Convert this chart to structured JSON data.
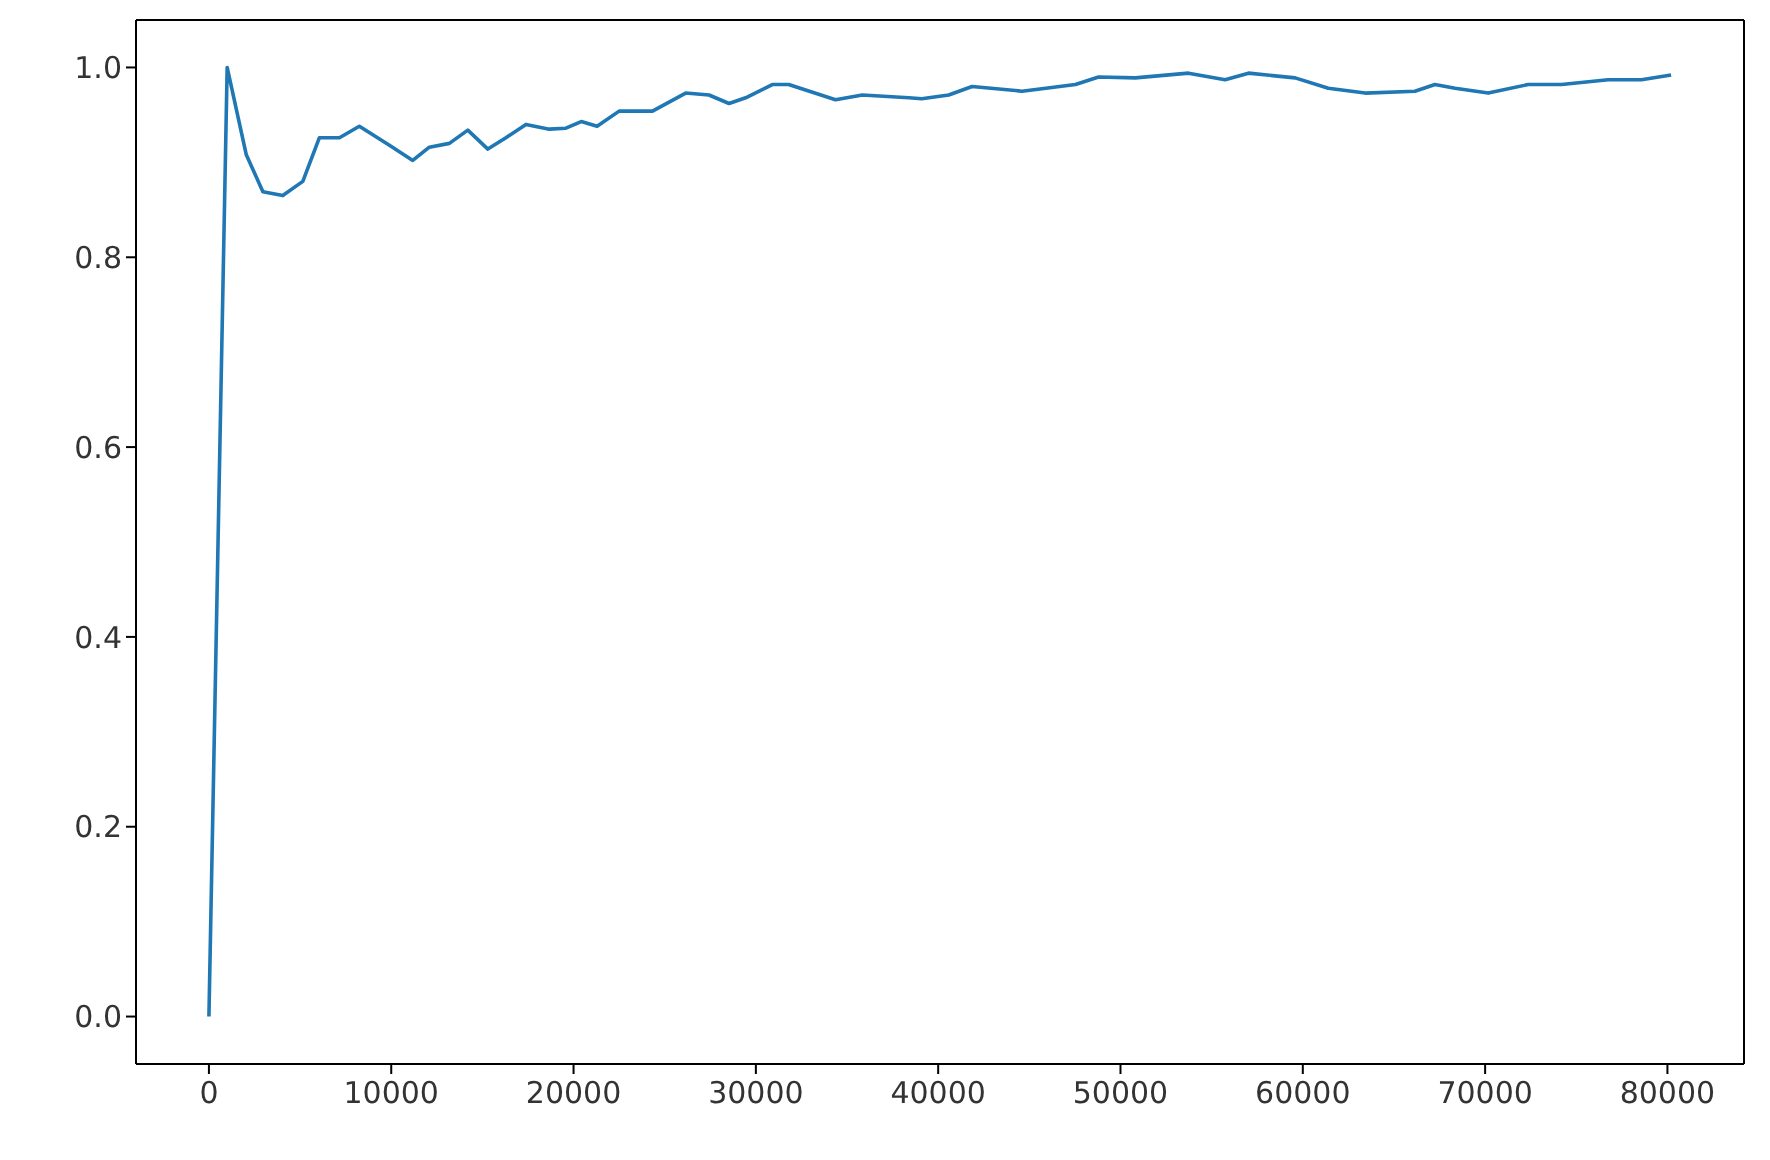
{
  "chart_data": {
    "type": "line",
    "x": [
      0,
      1000,
      2050,
      2960,
      4050,
      5150,
      6060,
      7160,
      8250,
      9900,
      11180,
      12090,
      13190,
      14200,
      15300,
      16290,
      17390,
      18670,
      19580,
      20420,
      21290,
      22500,
      24330,
      26150,
      27430,
      28530,
      29440,
      30900,
      31800,
      34370,
      35840,
      38390,
      39100,
      40580,
      41860,
      44600,
      47530,
      48800,
      50810,
      53730,
      55740,
      57020,
      59580,
      61400,
      63420,
      66150,
      67250,
      68350,
      70170,
      72360,
      74190,
      76750,
      78580,
      80200
    ],
    "series": [
      {
        "color": "#1f77b4",
        "values": [
          0,
          1.0,
          0.908,
          0.869,
          0.865,
          0.88,
          0.926,
          0.926,
          0.938,
          0.918,
          0.902,
          0.916,
          0.92,
          0.934,
          0.914,
          0.926,
          0.94,
          0.935,
          0.936,
          0.943,
          0.938,
          0.954,
          0.954,
          0.973,
          0.971,
          0.962,
          0.968,
          0.982,
          0.982,
          0.966,
          0.971,
          0.968,
          0.967,
          0.971,
          0.98,
          0.975,
          0.982,
          0.99,
          0.989,
          0.994,
          0.987,
          0.994,
          0.989,
          0.978,
          0.973,
          0.975,
          0.982,
          0.978,
          0.973,
          0.982,
          0.982,
          0.987,
          0.987,
          0.992
        ]
      }
    ],
    "xlim": [
      -4000,
      84200
    ],
    "xticks": [
      0,
      10000,
      20000,
      30000,
      40000,
      50000,
      60000,
      70000,
      80000
    ],
    "ylim": [
      -0.05,
      1.05
    ],
    "yticks": [
      {
        "value": 0,
        "label": "0.0"
      },
      {
        "value": 0.2,
        "label": "0.2"
      },
      {
        "value": 0.4,
        "label": "0.4"
      },
      {
        "value": 0.6,
        "label": "0.6"
      },
      {
        "value": 0.8,
        "label": "0.8"
      },
      {
        "value": 1.0,
        "label": "1.0"
      }
    ],
    "grid": false,
    "legend": false,
    "marker": "none",
    "line_style": "solid"
  }
}
